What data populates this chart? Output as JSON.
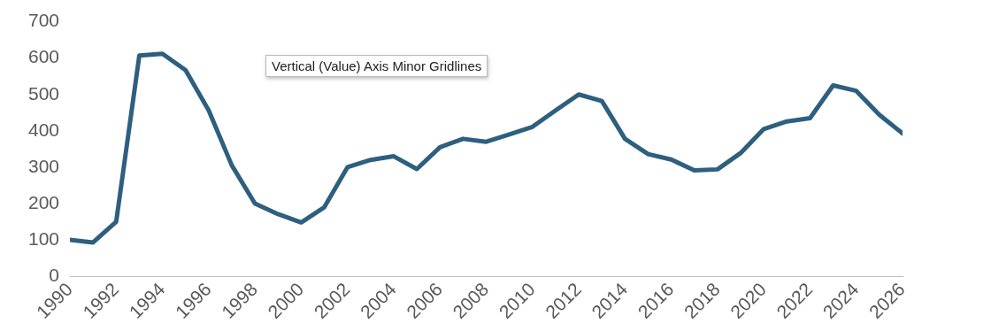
{
  "chart_data": {
    "type": "line",
    "x": [
      1990,
      1991,
      1992,
      1993,
      1994,
      1995,
      1996,
      1997,
      1998,
      1999,
      2000,
      2001,
      2002,
      2003,
      2004,
      2005,
      2006,
      2007,
      2008,
      2009,
      2010,
      2011,
      2012,
      2013,
      2014,
      2015,
      2016,
      2017,
      2018,
      2019,
      2020,
      2021,
      2022,
      2023,
      2024,
      2025,
      2026
    ],
    "series": [
      {
        "color": "#2e5f7f",
        "values": [
          100,
          93,
          150,
          607,
          612,
          567,
          456,
          305,
          200,
          171,
          148,
          190,
          300,
          320,
          330,
          295,
          355,
          378,
          370,
          390,
          411,
          456,
          500,
          482,
          378,
          336,
          321,
          291,
          294,
          339,
          405,
          426,
          435,
          525,
          510,
          444,
          393
        ]
      }
    ],
    "xlim": [
      1990,
      2026
    ],
    "xticks": [
      1990,
      1992,
      1994,
      1996,
      1998,
      2000,
      2002,
      2004,
      2006,
      2008,
      2010,
      2012,
      2014,
      2016,
      2018,
      2020,
      2022,
      2024,
      2026
    ],
    "ylim": [
      0,
      700
    ],
    "yticks": [
      0,
      100,
      200,
      300,
      400,
      500,
      600,
      700
    ],
    "grid": false,
    "legend": false,
    "marker": "none",
    "line_style": "solid",
    "annotations": [
      "Vertical (Value) Axis Minor Gridlines"
    ]
  }
}
